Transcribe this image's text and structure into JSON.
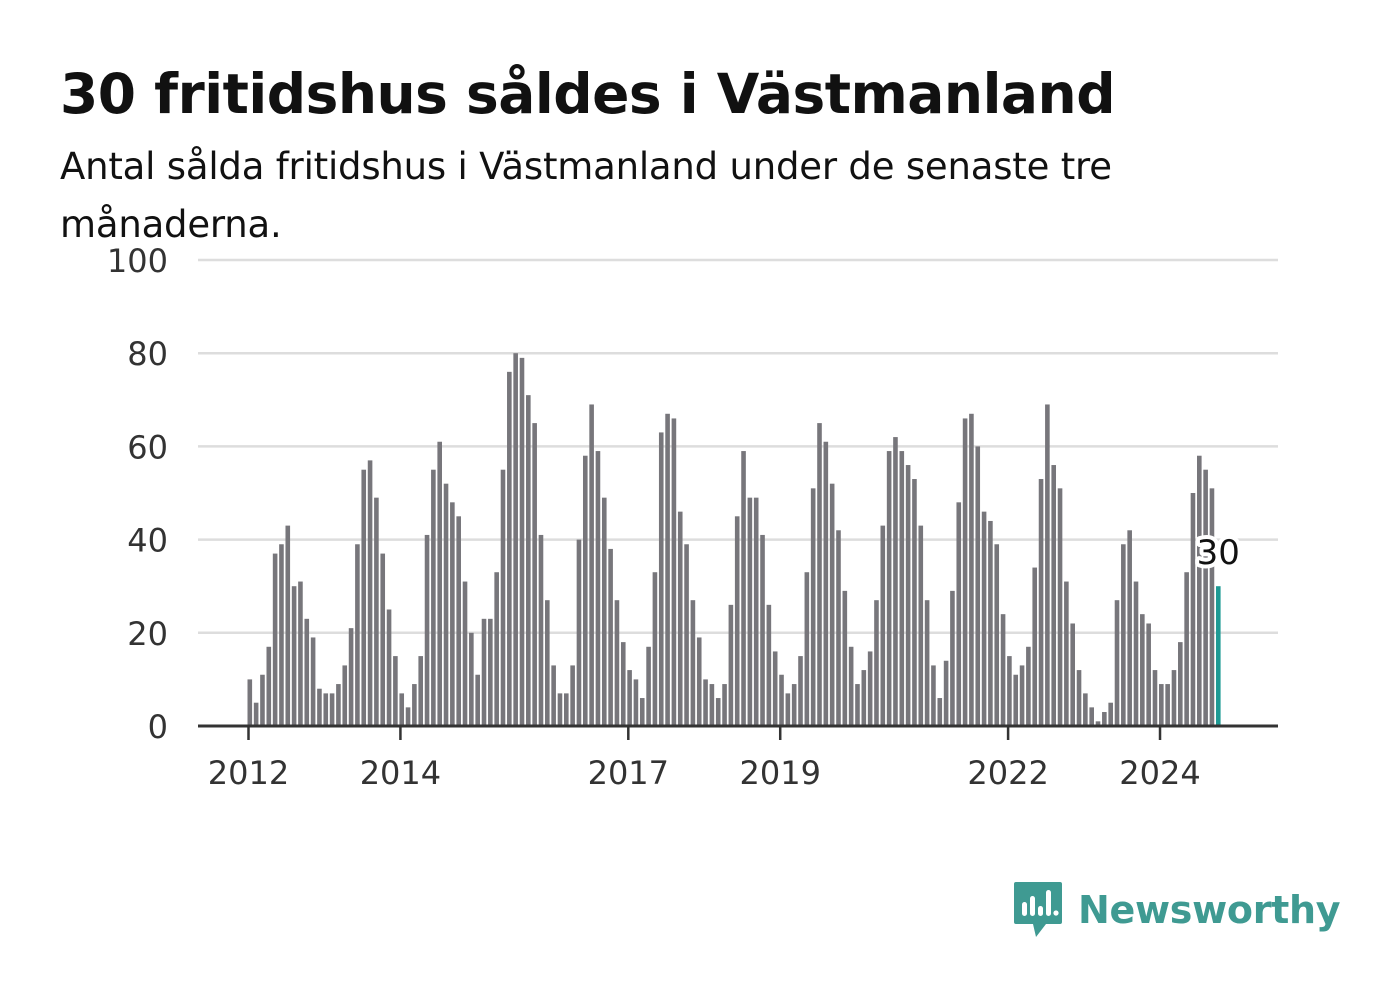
{
  "title": "30 fritidshus såldes i Västmanland",
  "subtitle": "Antal sålda fritidshus i Västmanland under de senaste tre månaderna.",
  "brand": {
    "name": "Newsworthy",
    "color": "#3f9a92"
  },
  "colors": {
    "bar": "#77767b",
    "highlight": "#1e9a94",
    "grid": "#dddddd",
    "axis": "#333333"
  },
  "chart_data": {
    "type": "bar",
    "title": "30 fritidshus såldes i Västmanland",
    "subtitle": "Antal sålda fritidshus i Västmanland under de senaste tre månaderna.",
    "xlabel": "",
    "ylabel": "",
    "ylim": [
      0,
      100
    ],
    "yticks": [
      0,
      20,
      40,
      60,
      80,
      100
    ],
    "xticks": [
      "2012",
      "2014",
      "2017",
      "2019",
      "2022",
      "2024"
    ],
    "grid": true,
    "first_month": "2012-01",
    "values": [
      10,
      5,
      11,
      17,
      37,
      39,
      43,
      30,
      31,
      23,
      19,
      8,
      7,
      7,
      9,
      13,
      21,
      39,
      55,
      57,
      49,
      37,
      25,
      15,
      7,
      4,
      9,
      15,
      41,
      55,
      61,
      52,
      48,
      45,
      31,
      20,
      11,
      23,
      23,
      33,
      55,
      76,
      80,
      79,
      71,
      65,
      41,
      27,
      13,
      7,
      7,
      13,
      40,
      58,
      69,
      59,
      49,
      38,
      27,
      18,
      12,
      10,
      6,
      17,
      33,
      63,
      67,
      66,
      46,
      39,
      27,
      19,
      10,
      9,
      6,
      9,
      26,
      45,
      59,
      49,
      49,
      41,
      26,
      16,
      11,
      7,
      9,
      15,
      33,
      51,
      65,
      61,
      52,
      42,
      29,
      17,
      9,
      12,
      16,
      27,
      43,
      59,
      62,
      59,
      56,
      53,
      43,
      27,
      13,
      6,
      14,
      29,
      48,
      66,
      67,
      60,
      46,
      44,
      39,
      24,
      15,
      11,
      13,
      17,
      34,
      53,
      69,
      56,
      51,
      31,
      22,
      12,
      7,
      4,
      1,
      3,
      5,
      27,
      39,
      42,
      31,
      24,
      22,
      12,
      9,
      9,
      12,
      18,
      33,
      50,
      58,
      55,
      51,
      30
    ],
    "highlight_last": true,
    "annotation": "30"
  }
}
